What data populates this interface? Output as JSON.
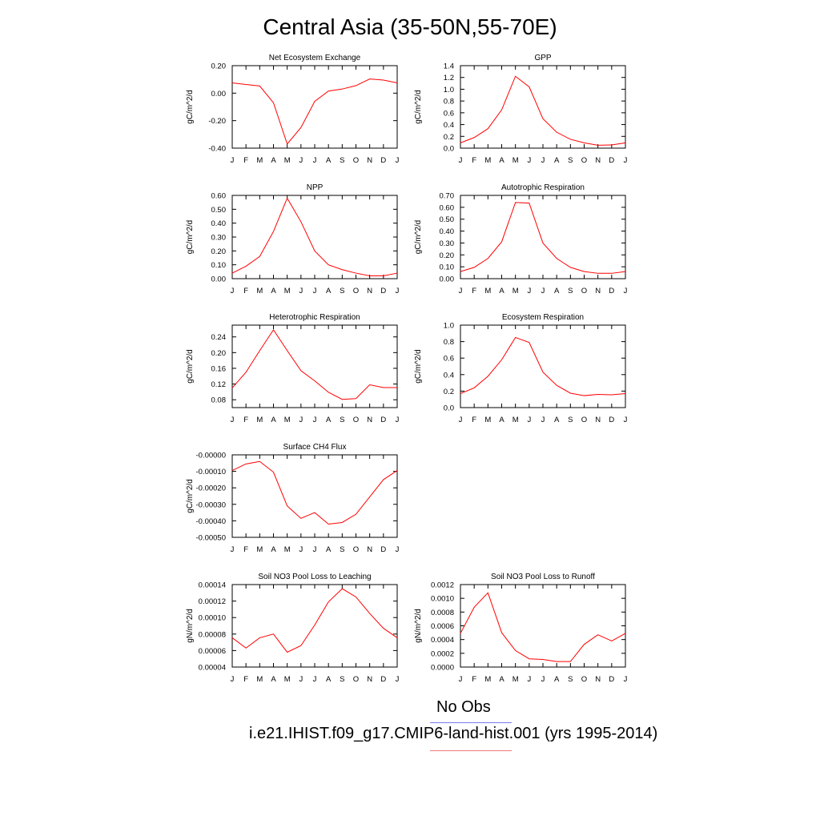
{
  "page_title": "Central Asia (35-50N,55-70E)",
  "legend": {
    "obs_label": "No Obs",
    "obs_color": "#7a7aee",
    "model_label": "i.e21.IHIST.f09_g17.CMIP6-land-hist.001 (yrs 1995-2014)",
    "model_color": "#ee7a7a"
  },
  "line_color": "#ff0000",
  "chart_data": [
    {
      "type": "line",
      "title": "Net Ecosystem Exchange",
      "ylabel": "gC/m^2/d",
      "categories": [
        "J",
        "F",
        "M",
        "A",
        "M",
        "J",
        "J",
        "A",
        "S",
        "O",
        "N",
        "D",
        "J"
      ],
      "values": [
        0.075,
        0.063,
        0.052,
        -0.07,
        -0.37,
        -0.25,
        -0.06,
        0.015,
        0.03,
        0.055,
        0.103,
        0.095,
        0.075
      ],
      "ylim": [
        -0.4,
        0.2
      ],
      "yticks": [
        -0.4,
        -0.2,
        0.0,
        0.2
      ],
      "yticklabels": [
        "-0.40",
        "-0.20",
        "0.00",
        "0.20"
      ]
    },
    {
      "type": "line",
      "title": "GPP",
      "ylabel": "gC/m^2/d",
      "categories": [
        "J",
        "F",
        "M",
        "A",
        "M",
        "J",
        "J",
        "A",
        "S",
        "O",
        "N",
        "D",
        "J"
      ],
      "values": [
        0.09,
        0.18,
        0.33,
        0.65,
        1.22,
        1.04,
        0.5,
        0.27,
        0.15,
        0.09,
        0.05,
        0.055,
        0.09
      ],
      "ylim": [
        0,
        1.4
      ],
      "yticks": [
        0,
        0.2,
        0.4,
        0.6,
        0.8,
        1.0,
        1.2,
        1.4
      ],
      "yticklabels": [
        "0.0",
        "0.2",
        "0.4",
        "0.6",
        "0.8",
        "1.0",
        "1.2",
        "1.4"
      ]
    },
    {
      "type": "line",
      "title": "NPP",
      "ylabel": "gC/m^2/d",
      "categories": [
        "J",
        "F",
        "M",
        "A",
        "M",
        "J",
        "J",
        "A",
        "S",
        "O",
        "N",
        "D",
        "J"
      ],
      "values": [
        0.04,
        0.09,
        0.16,
        0.34,
        0.58,
        0.41,
        0.2,
        0.1,
        0.065,
        0.04,
        0.02,
        0.02,
        0.04
      ],
      "ylim": [
        0,
        0.6
      ],
      "yticks": [
        0,
        0.1,
        0.2,
        0.3,
        0.4,
        0.5,
        0.6
      ],
      "yticklabels": [
        "0.00",
        "0.10",
        "0.20",
        "0.30",
        "0.40",
        "0.50",
        "0.60"
      ]
    },
    {
      "type": "line",
      "title": "Autotrophic Respiration",
      "ylabel": "gC/m^2/d",
      "categories": [
        "J",
        "F",
        "M",
        "A",
        "M",
        "J",
        "J",
        "A",
        "S",
        "O",
        "N",
        "D",
        "J"
      ],
      "values": [
        0.06,
        0.095,
        0.17,
        0.31,
        0.64,
        0.635,
        0.3,
        0.17,
        0.095,
        0.06,
        0.045,
        0.045,
        0.06
      ],
      "ylim": [
        0,
        0.7
      ],
      "yticks": [
        0,
        0.1,
        0.2,
        0.3,
        0.4,
        0.5,
        0.6,
        0.7
      ],
      "yticklabels": [
        "0.00",
        "0.10",
        "0.20",
        "0.30",
        "0.40",
        "0.50",
        "0.60",
        "0.70"
      ]
    },
    {
      "type": "line",
      "title": "Heterotrophic Respiration",
      "ylabel": "gC/m^2/d",
      "categories": [
        "J",
        "F",
        "M",
        "A",
        "M",
        "J",
        "J",
        "A",
        "S",
        "O",
        "N",
        "D",
        "J"
      ],
      "values": [
        0.11,
        0.15,
        0.205,
        0.258,
        0.205,
        0.154,
        0.128,
        0.099,
        0.081,
        0.083,
        0.118,
        0.111,
        0.111
      ],
      "ylim": [
        0.06,
        0.27
      ],
      "yticks": [
        0.08,
        0.12,
        0.16,
        0.2,
        0.24
      ],
      "yticklabels": [
        "0.08",
        "0.12",
        "0.16",
        "0.20",
        "0.24"
      ]
    },
    {
      "type": "line",
      "title": "Ecosystem Respiration",
      "ylabel": "gC/m^2/d",
      "categories": [
        "J",
        "F",
        "M",
        "A",
        "M",
        "J",
        "J",
        "A",
        "S",
        "O",
        "N",
        "D",
        "J"
      ],
      "values": [
        0.17,
        0.24,
        0.38,
        0.58,
        0.85,
        0.79,
        0.43,
        0.27,
        0.175,
        0.145,
        0.16,
        0.155,
        0.17
      ],
      "ylim": [
        0,
        1.0
      ],
      "yticks": [
        0,
        0.2,
        0.4,
        0.6,
        0.8,
        1.0
      ],
      "yticklabels": [
        "0.0",
        "0.2",
        "0.4",
        "0.6",
        "0.8",
        "1.0"
      ]
    },
    {
      "type": "line",
      "title": "Surface CH4 Flux",
      "ylabel": "gC/m^2/d",
      "categories": [
        "J",
        "F",
        "M",
        "A",
        "M",
        "J",
        "J",
        "A",
        "S",
        "O",
        "N",
        "D",
        "J"
      ],
      "values": [
        -9.5e-05,
        -5.5e-05,
        -4e-05,
        -0.000105,
        -0.00031,
        -0.000385,
        -0.00035,
        -0.00042,
        -0.00041,
        -0.00036,
        -0.000255,
        -0.00015,
        -9.5e-05
      ],
      "ylim": [
        -0.0005,
        0.0
      ],
      "yticks": [
        -0.0005,
        -0.0004,
        -0.0003,
        -0.0002,
        -0.0001,
        0.0
      ],
      "yticklabels": [
        "-0.00050",
        "-0.00040",
        "-0.00030",
        "-0.00020",
        "-0.00010",
        "-0.00000"
      ]
    },
    {
      "type": "line",
      "title": "Soil NO3 Pool Loss to Leaching",
      "ylabel": "gN/m^2/d",
      "categories": [
        "J",
        "F",
        "M",
        "A",
        "M",
        "J",
        "J",
        "A",
        "S",
        "O",
        "N",
        "D",
        "J"
      ],
      "values": [
        7.55e-05,
        6.3e-05,
        7.55e-05,
        8e-05,
        5.8e-05,
        6.6e-05,
        9.1e-05,
        0.000119,
        0.000135,
        0.000125,
        0.000105,
        8.7e-05,
        7.55e-05
      ],
      "ylim": [
        4e-05,
        0.00014
      ],
      "yticks": [
        4e-05,
        6e-05,
        8e-05,
        0.0001,
        0.00012,
        0.00014
      ],
      "yticklabels": [
        "0.00004",
        "0.00006",
        "0.00008",
        "0.00010",
        "0.00012",
        "0.00014"
      ]
    },
    {
      "type": "line",
      "title": "Soil NO3 Pool Loss to Runoff",
      "ylabel": "gN/m^2/d",
      "categories": [
        "J",
        "F",
        "M",
        "A",
        "M",
        "J",
        "J",
        "A",
        "S",
        "O",
        "N",
        "D",
        "J"
      ],
      "values": [
        0.00049,
        0.00087,
        0.00108,
        0.0005,
        0.00024,
        0.00012,
        0.00011,
        8e-05,
        8e-05,
        0.00033,
        0.00047,
        0.00038,
        0.00049
      ],
      "ylim": [
        0,
        0.0012
      ],
      "yticks": [
        0,
        0.0002,
        0.0004,
        0.0006,
        0.0008,
        0.001,
        0.0012
      ],
      "yticklabels": [
        "0.0000",
        "0.0002",
        "0.0004",
        "0.0006",
        "0.0008",
        "0.0010",
        "0.0012"
      ]
    }
  ]
}
